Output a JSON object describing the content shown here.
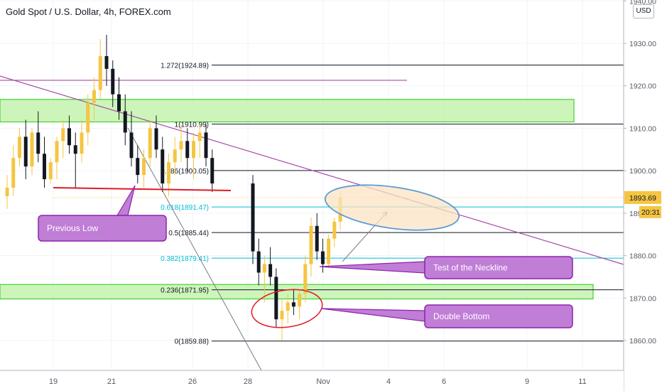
{
  "header": {
    "symbol_title": "Gold Spot / U.S. Dollar, 4h, FOREX.com",
    "currency": "USD"
  },
  "colors": {
    "up_candle": "#f5c542",
    "down_candle": "#131722",
    "fib_line": "#131722",
    "fib_highlight": "#00bcd4",
    "zone_fill": "#c8f5b4",
    "zone_border": "#2ecc1a",
    "trendline": "#a64ca6",
    "callout_fill": "#c07ed6",
    "callout_border": "#8e24aa",
    "ellipse_fill": "#fbe3c4",
    "ellipse_border": "#5b9bd5",
    "red_marker": "#e01b24",
    "price_badge": "#f5c542"
  },
  "price_axis": {
    "ticks": [
      "1940.00",
      "1930.00",
      "1920.00",
      "1910.00",
      "1900.00",
      "1890.00",
      "1880.00",
      "1870.00",
      "1860.00"
    ],
    "tick_values": [
      1940,
      1930,
      1920,
      1910,
      1900,
      1890,
      1880,
      1870,
      1860
    ],
    "current_price_label": "1893.69",
    "current_price": 1893.69,
    "countdown_label": "20:31"
  },
  "time_axis": {
    "ticks": [
      "19",
      "21",
      "26",
      "28",
      "Nov",
      "4",
      "6",
      "9",
      "11"
    ]
  },
  "chart_data": {
    "type": "candlestick",
    "title": "Gold Spot / U.S. Dollar, 4h, FOREX.com",
    "ylim": [
      1853,
      1940
    ],
    "x_bars": 59,
    "candles": [
      {
        "o": 1894,
        "h": 1899,
        "l": 1891,
        "c": 1896
      },
      {
        "o": 1896,
        "h": 1906,
        "l": 1894,
        "c": 1903
      },
      {
        "o": 1903,
        "h": 1910,
        "l": 1901,
        "c": 1908
      },
      {
        "o": 1908,
        "h": 1912,
        "l": 1898,
        "c": 1901
      },
      {
        "o": 1901,
        "h": 1910,
        "l": 1899,
        "c": 1909
      },
      {
        "o": 1909,
        "h": 1914,
        "l": 1902,
        "c": 1904
      },
      {
        "o": 1904,
        "h": 1908,
        "l": 1896,
        "c": 1898
      },
      {
        "o": 1898,
        "h": 1903,
        "l": 1897,
        "c": 1902
      },
      {
        "o": 1902,
        "h": 1908,
        "l": 1898,
        "c": 1907
      },
      {
        "o": 1907,
        "h": 1912,
        "l": 1903,
        "c": 1910
      },
      {
        "o": 1910,
        "h": 1913,
        "l": 1904,
        "c": 1906
      },
      {
        "o": 1906,
        "h": 1909,
        "l": 1896,
        "c": 1904
      },
      {
        "o": 1904,
        "h": 1912,
        "l": 1902,
        "c": 1909
      },
      {
        "o": 1909,
        "h": 1918,
        "l": 1906,
        "c": 1916
      },
      {
        "o": 1916,
        "h": 1922,
        "l": 1912,
        "c": 1919
      },
      {
        "o": 1919,
        "h": 1931,
        "l": 1917,
        "c": 1927
      },
      {
        "o": 1927,
        "h": 1932,
        "l": 1920,
        "c": 1924
      },
      {
        "o": 1924,
        "h": 1926,
        "l": 1915,
        "c": 1918
      },
      {
        "o": 1918,
        "h": 1922,
        "l": 1912,
        "c": 1914
      },
      {
        "o": 1914,
        "h": 1918,
        "l": 1906,
        "c": 1909
      },
      {
        "o": 1909,
        "h": 1914,
        "l": 1901,
        "c": 1903
      },
      {
        "o": 1903,
        "h": 1906,
        "l": 1897,
        "c": 1899
      },
      {
        "o": 1899,
        "h": 1905,
        "l": 1896,
        "c": 1903
      },
      {
        "o": 1903,
        "h": 1912,
        "l": 1901,
        "c": 1910
      },
      {
        "o": 1910,
        "h": 1913,
        "l": 1903,
        "c": 1905
      },
      {
        "o": 1905,
        "h": 1908,
        "l": 1895,
        "c": 1897
      },
      {
        "o": 1897,
        "h": 1904,
        "l": 1894,
        "c": 1902
      },
      {
        "o": 1902,
        "h": 1908,
        "l": 1899,
        "c": 1905
      },
      {
        "o": 1905,
        "h": 1911,
        "l": 1902,
        "c": 1907
      },
      {
        "o": 1907,
        "h": 1910,
        "l": 1900,
        "c": 1903
      },
      {
        "o": 1903,
        "h": 1909,
        "l": 1898,
        "c": 1907
      },
      {
        "o": 1907,
        "h": 1911,
        "l": 1903,
        "c": 1909
      },
      {
        "o": 1909,
        "h": 1911,
        "l": 1901,
        "c": 1903
      },
      {
        "o": 1903,
        "h": 1905,
        "l": 1895,
        "c": 1897
      },
      {
        "o": 1897,
        "h": 1899,
        "l": 1878,
        "c": 1881
      },
      {
        "o": 1881,
        "h": 1884,
        "l": 1873,
        "c": 1876
      },
      {
        "o": 1876,
        "h": 1880,
        "l": 1869,
        "c": 1878
      },
      {
        "o": 1878,
        "h": 1882,
        "l": 1873,
        "c": 1875
      },
      {
        "o": 1875,
        "h": 1877,
        "l": 1863,
        "c": 1865
      },
      {
        "o": 1865,
        "h": 1870,
        "l": 1860,
        "c": 1867
      },
      {
        "o": 1867,
        "h": 1871,
        "l": 1864,
        "c": 1869
      },
      {
        "o": 1869,
        "h": 1872,
        "l": 1866,
        "c": 1868
      },
      {
        "o": 1868,
        "h": 1872,
        "l": 1865,
        "c": 1871
      },
      {
        "o": 1871,
        "h": 1880,
        "l": 1869,
        "c": 1878
      },
      {
        "o": 1878,
        "h": 1889,
        "l": 1875,
        "c": 1887
      },
      {
        "o": 1887,
        "h": 1890,
        "l": 1879,
        "c": 1881
      },
      {
        "o": 1881,
        "h": 1884,
        "l": 1876,
        "c": 1878
      },
      {
        "o": 1878,
        "h": 1885,
        "l": 1877,
        "c": 1884
      },
      {
        "o": 1884,
        "h": 1889,
        "l": 1882,
        "c": 1888
      },
      {
        "o": 1888,
        "h": 1895,
        "l": 1886,
        "c": 1893.69
      }
    ],
    "fib_levels": [
      {
        "label": "1.272(1924.89)",
        "value": 1924.89,
        "highlight": false
      },
      {
        "label": "1(1910.99)",
        "value": 1910.99,
        "highlight": false
      },
      {
        "label": "0.786(1900.05)",
        "value": 1900.05,
        "highlight": false
      },
      {
        "label": "0.618(1891.47)",
        "value": 1891.47,
        "highlight": true
      },
      {
        "label": "0.5(1885.44)",
        "value": 1885.44,
        "highlight": false
      },
      {
        "label": "0.382(1879.41)",
        "value": 1879.41,
        "highlight": true
      },
      {
        "label": "0.236(1871.95)",
        "value": 1871.95,
        "highlight": false
      },
      {
        "label": "0(1859.88)",
        "value": 1859.88,
        "highlight": false
      }
    ],
    "zones": [
      {
        "low": 1911.5,
        "high": 1916.8
      },
      {
        "low": 1869.8,
        "high": 1873.2
      }
    ],
    "purple_level": 1921.3,
    "previous_low_level": 1895.5,
    "annotations": [
      {
        "id": "previous-low",
        "text": "Previous Low"
      },
      {
        "id": "test-neckline",
        "text": "Test of the Neckline"
      },
      {
        "id": "double-bottom",
        "text": "Double Bottom"
      }
    ]
  }
}
